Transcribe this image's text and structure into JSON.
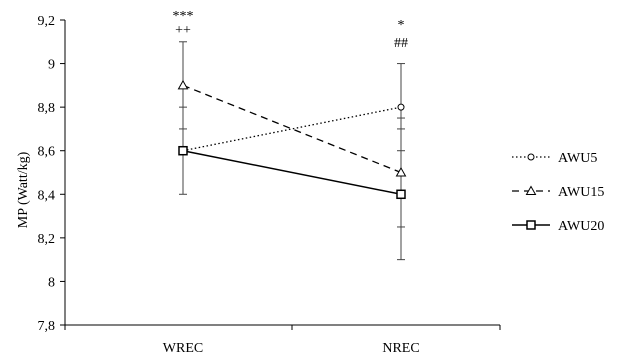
{
  "chart_data": {
    "type": "line",
    "categories": [
      "WREC",
      "NREC"
    ],
    "ylabel": "MP (Watt/kg)",
    "xlabel": "",
    "title": "",
    "ylim": [
      7.8,
      9.2
    ],
    "yticks": [
      "7,8",
      "8",
      "8,2",
      "8,4",
      "8,6",
      "8,8",
      "9",
      "9,2"
    ],
    "ytick_values": [
      7.8,
      8.0,
      8.2,
      8.4,
      8.6,
      8.8,
      9.0,
      9.2
    ],
    "grid": false,
    "legend_position": "right",
    "series": [
      {
        "name": "AWU5",
        "values": [
          8.6,
          8.8
        ],
        "error": [
          null,
          0.2
        ],
        "line_style": "dotted",
        "marker": "circle",
        "color": "#000000"
      },
      {
        "name": "AWU15",
        "values": [
          8.9,
          8.5
        ],
        "error": [
          0.2,
          0.25
        ],
        "line_style": "dashed",
        "marker": "triangle",
        "color": "#000000"
      },
      {
        "name": "AWU20",
        "values": [
          8.6,
          8.4
        ],
        "error": [
          0.2,
          0.3
        ],
        "line_style": "solid",
        "marker": "square",
        "color": "#000000"
      }
    ],
    "annotations": [
      {
        "category": "WREC",
        "lines": [
          "***",
          "++"
        ]
      },
      {
        "category": "NREC",
        "lines": [
          "*",
          "##"
        ]
      }
    ]
  }
}
